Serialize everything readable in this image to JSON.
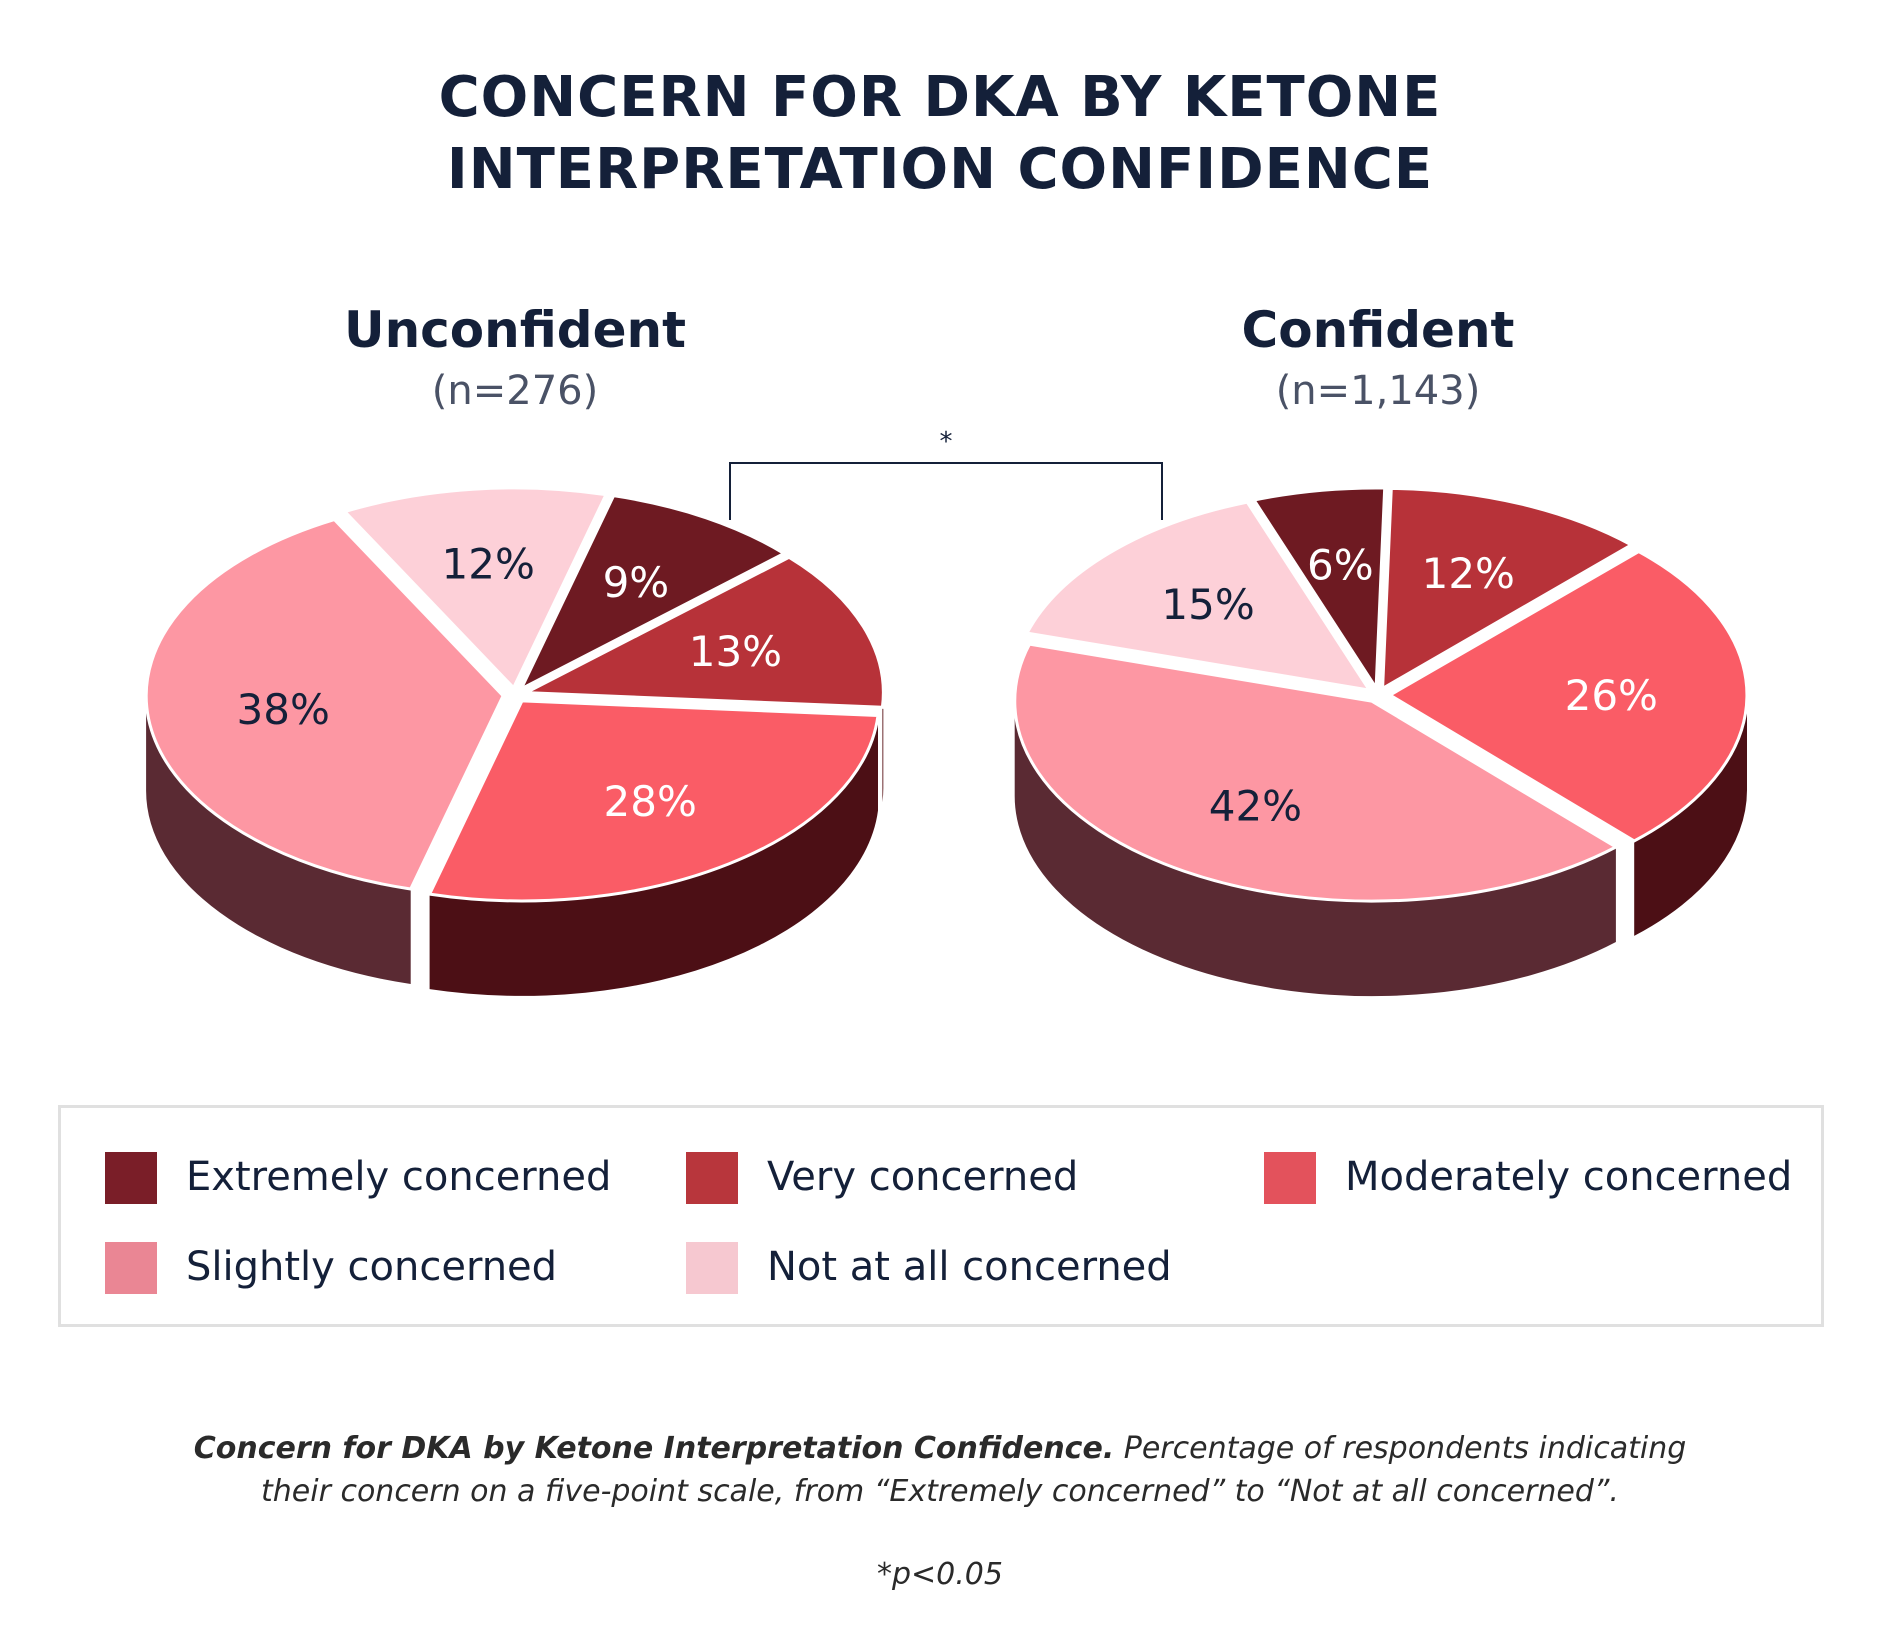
{
  "title": {
    "line1": "CONCERN FOR DKA BY KETONE",
    "line2": "INTERPRETATION CONFIDENCE"
  },
  "significance_marker": "*",
  "chart_data": [
    {
      "type": "pie",
      "title": "Unconfident",
      "n_label": "(n=276)",
      "categories": [
        "Extremely concerned",
        "Very concerned",
        "Moderately concerned",
        "Slightly concerned",
        "Not at all concerned"
      ],
      "values": [
        9,
        13,
        28,
        38,
        12
      ],
      "labels": [
        "9%",
        "13%",
        "28%",
        "38%",
        "12%"
      ]
    },
    {
      "type": "pie",
      "title": "Confident",
      "n_label": "(n=1,143)",
      "categories": [
        "Extremely concerned",
        "Very concerned",
        "Moderately concerned",
        "Slightly concerned",
        "Not at all concerned"
      ],
      "values": [
        6,
        12,
        26,
        42,
        15
      ],
      "labels": [
        "6%",
        "12%",
        "26%",
        "42%",
        "15%"
      ]
    }
  ],
  "legend": [
    {
      "label": "Extremely concerned",
      "color": "#7a1e28"
    },
    {
      "label": "Very concerned",
      "color": "#b8363c"
    },
    {
      "label": "Moderately concerned",
      "color": "#e3525c"
    },
    {
      "label": "Slightly concerned",
      "color": "#ea8694"
    },
    {
      "label": "Not at all concerned",
      "color": "#f6c8d0"
    }
  ],
  "slice_colors": {
    "top": [
      "#6e1a22",
      "#b73239",
      "#fa5c66",
      "#fd97a3",
      "#fdd0d8"
    ],
    "side": [
      "#3c0b10",
      "#5a1418",
      "#4c0f15",
      "#5a2a33",
      "#8a6a72"
    ],
    "label": [
      "#ffffff",
      "#ffffff",
      "#ffffff",
      "#142039",
      "#142039"
    ]
  },
  "caption": {
    "bold": "Concern for DKA by Ketone Interpretation Confidence.",
    "line1_rest": " Percentage of respondents indicating",
    "line2": "their concern on a five-point scale, from “Extremely concerned” to “Not at all concerned”."
  },
  "footnote": "*p<0.05"
}
